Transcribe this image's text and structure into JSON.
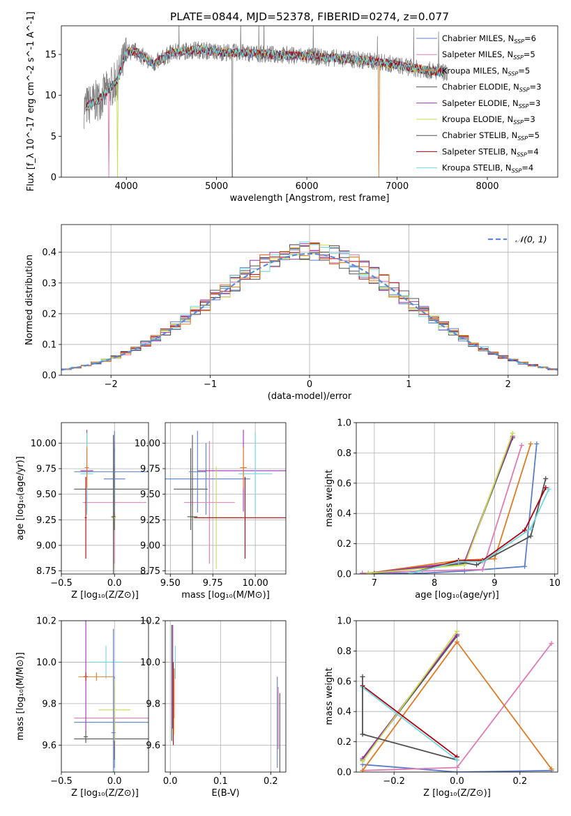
{
  "title": "PLATE=0844, MJD=52378, FIBERID=0274, z=0.077",
  "series_colors": [
    "#5b7ec8",
    "#e07ab3",
    "#555555",
    "#9b30b0",
    "#c8dc50",
    "#505050",
    "#b00010",
    "#70d8e0",
    "#e07a22"
  ],
  "chart_data": [
    {
      "panel": "spectrum",
      "type": "line",
      "xlabel": "wavelength [Angstrom, rest frame]",
      "ylabel": "Flux [f_λ 10^-17 erg cm^-2 s^-1 A^-1]",
      "xlim": [
        3280,
        8780
      ],
      "ylim": [
        0,
        18.5
      ],
      "xticks": [
        4000,
        5000,
        6000,
        7000,
        8000
      ],
      "yticks": [
        0,
        5,
        10,
        15
      ],
      "legend_position": "upper right",
      "legend": [
        {
          "label": "Chabrier MILES, N",
          "sub": "SSP",
          "val": "=6",
          "color": "#5b7ec8"
        },
        {
          "label": "Salpeter MILES, N",
          "sub": "SSP",
          "val": "=5",
          "color": "#e07ab3"
        },
        {
          "label": "Kroupa MILES, N",
          "sub": "SSP",
          "val": "=5",
          "color": "#e07a22"
        },
        {
          "label": "Chabrier ELODIE, N",
          "sub": "SSP",
          "val": "=3",
          "color": "#555555"
        },
        {
          "label": "Salpeter ELODIE, N",
          "sub": "SSP",
          "val": "=3",
          "color": "#9b30b0"
        },
        {
          "label": "Kroupa ELODIE, N",
          "sub": "SSP",
          "val": "=3",
          "color": "#c8dc50"
        },
        {
          "label": "Chabrier STELIB, N",
          "sub": "SSP",
          "val": "=5",
          "color": "#505050"
        },
        {
          "label": "Salpeter STELIB, N",
          "sub": "SSP",
          "val": "=4",
          "color": "#b00010"
        },
        {
          "label": "Kroupa STELIB, N",
          "sub": "SSP",
          "val": "=4",
          "color": "#70d8e0"
        }
      ],
      "data_profile": {
        "x": [
          3530,
          3700,
          3900,
          4000,
          4100,
          4300,
          4500,
          4800,
          5000,
          5300,
          5600,
          6000,
          6400,
          6800,
          7200,
          7500
        ],
        "y": [
          8.5,
          9.5,
          11.8,
          15.2,
          15.4,
          13.8,
          15.2,
          15.6,
          15.3,
          15.2,
          15.0,
          14.8,
          14.5,
          14.1,
          13.3,
          12.8
        ]
      }
    },
    {
      "panel": "residuals",
      "type": "histogram",
      "xlabel": "(data-model)/error",
      "ylabel": "Normed distribution",
      "xlim": [
        -2.5,
        2.5
      ],
      "ylim": [
        0,
        0.49
      ],
      "xticks": [
        -2,
        -1,
        0,
        1,
        2
      ],
      "yticks": [
        0.0,
        0.1,
        0.2,
        0.3,
        0.4
      ],
      "legend_label": "𝒩(0, 1)",
      "legend_position": "upper right",
      "gaussian": {
        "mean": 0,
        "sigma": 1
      }
    },
    {
      "panel": "age_vs_Z",
      "type": "errorbar",
      "xlabel": "Z [log₁₀(Z/Z⊙)]",
      "ylabel": "age  [log₁₀(age/yr)]",
      "xlim": [
        -0.5,
        0.32
      ],
      "ylim": [
        8.72,
        10.2
      ],
      "xticks": [
        -0.5,
        0.0
      ],
      "yticks": [
        8.75,
        9.0,
        9.25,
        9.5,
        9.75,
        10.0
      ],
      "points": [
        {
          "x": 0.0,
          "xerr": 0.1,
          "y": 9.65,
          "yerr": 0.35
        },
        {
          "x": 0.0,
          "xerr": 0.3,
          "y": 9.42,
          "yerr": 0.6
        },
        {
          "x": 0.0,
          "xerr": 0.38,
          "y": 9.55,
          "yerr": 0.4
        },
        {
          "x": -0.26,
          "xerr": 0.06,
          "y": 9.73,
          "yerr": 0.4
        },
        {
          "x": -0.01,
          "xerr": 0.02,
          "y": 9.27,
          "yerr": 0.5
        },
        {
          "x": -0.01,
          "xerr": 0.02,
          "y": 9.28,
          "yerr": 0.8
        },
        {
          "x": -0.27,
          "xerr": 0.01,
          "y": 9.27,
          "yerr": 0.4
        },
        {
          "x": -0.26,
          "xerr": 0.06,
          "y": 9.7,
          "yerr": 0.4
        },
        {
          "x": -0.26,
          "xerr": 0.02,
          "y": 9.76,
          "yerr": 0.2
        },
        {
          "x": 0.0,
          "xerr": 0.38,
          "y": 9.72,
          "yerr": 0.4
        }
      ]
    },
    {
      "panel": "age_vs_mass",
      "type": "errorbar",
      "xlabel": "mass [log₁₀(M/M⊙)]",
      "ylabel": "",
      "xlim": [
        9.47,
        10.18
      ],
      "ylim": [
        8.72,
        10.2
      ],
      "xticks": [
        9.5,
        9.75,
        10.0
      ],
      "yticks": [
        8.75,
        9.0,
        9.25,
        9.5,
        9.75,
        10.0
      ],
      "points": [
        {
          "x": 9.71,
          "xerr": 0.26,
          "y": 9.65,
          "yerr": 0.35
        },
        {
          "x": 9.73,
          "xerr": 0.15,
          "y": 9.42,
          "yerr": 0.6
        },
        {
          "x": 9.62,
          "xerr": 0.1,
          "y": 9.55,
          "yerr": 0.4
        },
        {
          "x": 9.93,
          "xerr": 0.27,
          "y": 9.73,
          "yerr": 0.4
        },
        {
          "x": 9.77,
          "xerr": 0.15,
          "y": 9.27,
          "yerr": 0.5
        },
        {
          "x": 9.63,
          "xerr": 0.03,
          "y": 9.28,
          "yerr": 0.8
        },
        {
          "x": 9.94,
          "xerr": 0.3,
          "y": 9.27,
          "yerr": 0.4
        },
        {
          "x": 10.0,
          "xerr": 0.1,
          "y": 9.7,
          "yerr": 0.4
        },
        {
          "x": 9.93,
          "xerr": 0.02,
          "y": 9.76,
          "yerr": 0.2
        },
        {
          "x": 9.66,
          "xerr": 0.05,
          "y": 9.72,
          "yerr": 0.4
        }
      ]
    },
    {
      "panel": "massweight_vs_age",
      "type": "line",
      "xlabel": "age  [log₁₀(age/yr)]",
      "ylabel": "mass weight",
      "xlim": [
        6.7,
        10.05
      ],
      "ylim": [
        0,
        1.0
      ],
      "xticks": [
        7,
        8,
        9,
        10
      ],
      "yticks": [
        0.0,
        0.2,
        0.4,
        0.6,
        0.8,
        1.0
      ],
      "series": [
        {
          "color": "#5b7ec8",
          "x": [
            6.8,
            7.8,
            8.5,
            9.5,
            9.7
          ],
          "y": [
            0.005,
            0.005,
            0.02,
            0.05,
            0.86
          ]
        },
        {
          "color": "#e07ab3",
          "x": [
            6.8,
            7.8,
            8.8,
            9.45
          ],
          "y": [
            0.005,
            0.02,
            0.03,
            0.85
          ]
        },
        {
          "color": "#e07a22",
          "x": [
            6.9,
            8.4,
            9.0,
            9.6
          ],
          "y": [
            0.005,
            0.09,
            0.1,
            0.86
          ]
        },
        {
          "color": "#555555",
          "x": [
            7.0,
            8.5,
            9.3
          ],
          "y": [
            0.005,
            0.07,
            0.9
          ]
        },
        {
          "color": "#9b30b0",
          "x": [
            6.9,
            8.5,
            9.3
          ],
          "y": [
            0.005,
            0.08,
            0.91
          ]
        },
        {
          "color": "#c8dc50",
          "x": [
            6.9,
            8.5,
            9.3
          ],
          "y": [
            0.005,
            0.06,
            0.93
          ]
        },
        {
          "color": "#505050",
          "x": [
            7.6,
            8.4,
            8.7,
            9.6,
            9.85
          ],
          "y": [
            0.005,
            0.08,
            0.06,
            0.25,
            0.63
          ]
        },
        {
          "color": "#b00010",
          "x": [
            7.6,
            8.4,
            8.8,
            9.5,
            9.85
          ],
          "y": [
            0.005,
            0.09,
            0.09,
            0.29,
            0.57
          ]
        },
        {
          "color": "#70d8e0",
          "x": [
            7.6,
            8.4,
            8.8,
            9.6,
            9.9
          ],
          "y": [
            0.005,
            0.08,
            0.08,
            0.3,
            0.56
          ]
        }
      ]
    },
    {
      "panel": "mass_vs_Z",
      "type": "errorbar",
      "xlabel": "Z [log₁₀(Z/Z⊙)]",
      "ylabel": "mass [log₁₀(M/M⊙)]",
      "xlim": [
        -0.5,
        0.32
      ],
      "ylim": [
        9.47,
        10.2
      ],
      "xticks": [
        -0.5,
        0.0
      ],
      "yticks": [
        9.6,
        9.8,
        10.0,
        10.2
      ],
      "points": [
        {
          "x": 0.0,
          "xerr": 0.38,
          "y": 9.71,
          "yerr": 0.22
        },
        {
          "x": 0.0,
          "xerr": 0.38,
          "y": 9.73,
          "yerr": 0.15
        },
        {
          "x": 0.0,
          "xerr": 0.38,
          "y": 9.63,
          "yerr": 0.1
        },
        {
          "x": -0.27,
          "xerr": 0.02,
          "y": 9.93,
          "yerr": 0.27
        },
        {
          "x": 0.0,
          "xerr": 0.15,
          "y": 9.77,
          "yerr": 0.15
        },
        {
          "x": -0.27,
          "xerr": 0.02,
          "y": 9.64,
          "yerr": 0.03
        },
        {
          "x": -0.27,
          "xerr": 0.02,
          "y": 9.93,
          "yerr": 0.02
        },
        {
          "x": -0.08,
          "xerr": 0.15,
          "y": 10.0,
          "yerr": 0.08
        },
        {
          "x": -0.17,
          "xerr": 0.17,
          "y": 9.93,
          "yerr": 0.02
        },
        {
          "x": -0.01,
          "xerr": 0.02,
          "y": 9.66,
          "yerr": 0.5
        }
      ]
    },
    {
      "panel": "mass_vs_ebv",
      "type": "errorbar",
      "xlabel": "E(B-V)",
      "ylabel": "",
      "xlim": [
        -0.01,
        0.23
      ],
      "ylim": [
        9.47,
        10.2
      ],
      "xticks": [
        0.0,
        0.1,
        0.2
      ],
      "yticks": [
        9.6,
        9.8,
        10.0,
        10.2
      ],
      "points": [
        {
          "x": 0.213,
          "y": 9.71,
          "yerr": 0.22
        },
        {
          "x": 0.215,
          "y": 9.73,
          "yerr": 0.15
        },
        {
          "x": 0.218,
          "y": 9.65,
          "yerr": 0.2
        },
        {
          "x": 0.005,
          "y": 9.93,
          "yerr": 0.25
        },
        {
          "x": 0.008,
          "y": 9.8,
          "yerr": 0.15
        },
        {
          "x": 0.003,
          "y": 9.9,
          "yerr": 0.28
        },
        {
          "x": 0.006,
          "y": 9.8,
          "yerr": 0.2
        },
        {
          "x": 0.01,
          "y": 10.0,
          "yerr": 0.08
        },
        {
          "x": 0.008,
          "y": 9.85,
          "yerr": 0.12
        }
      ]
    },
    {
      "panel": "massweight_vs_Z",
      "type": "line",
      "xlabel": "Z [log₁₀(Z/Z⊙)]",
      "ylabel": "mass weight",
      "xlim": [
        -0.32,
        0.32
      ],
      "ylim": [
        0,
        1.0
      ],
      "xticks": [
        -0.2,
        0.0,
        0.2
      ],
      "yticks": [
        0.0,
        0.2,
        0.4,
        0.6,
        0.8,
        1.0
      ],
      "series": [
        {
          "color": "#5b7ec8",
          "x": [
            -0.3,
            0.0,
            0.3
          ],
          "y": [
            0.05,
            0.0,
            0.01
          ]
        },
        {
          "color": "#e07ab3",
          "x": [
            -0.3,
            0.0,
            0.3
          ],
          "y": [
            0.01,
            0.03,
            0.85
          ]
        },
        {
          "color": "#e07a22",
          "x": [
            -0.3,
            0.0,
            0.3
          ],
          "y": [
            0.01,
            0.86,
            0.02
          ]
        },
        {
          "color": "#555555",
          "x": [
            -0.3,
            0.0
          ],
          "y": [
            0.08,
            0.9
          ]
        },
        {
          "color": "#9b30b0",
          "x": [
            -0.3,
            0.0
          ],
          "y": [
            0.09,
            0.91
          ]
        },
        {
          "color": "#c8dc50",
          "x": [
            -0.3,
            0.0
          ],
          "y": [
            0.07,
            0.93
          ]
        },
        {
          "color": "#505050",
          "x": [
            -0.3,
            0.0
          ],
          "y": [
            0.25,
            0.08
          ]
        },
        {
          "color": "#b00010",
          "x": [
            -0.3,
            0.0
          ],
          "y": [
            0.57,
            0.1
          ]
        },
        {
          "color": "#70d8e0",
          "x": [
            -0.3,
            0.0
          ],
          "y": [
            0.56,
            0.08
          ]
        },
        {
          "color": "#505050",
          "x": [
            -0.3,
            -0.3
          ],
          "y": [
            0.25,
            0.63
          ]
        }
      ]
    }
  ]
}
